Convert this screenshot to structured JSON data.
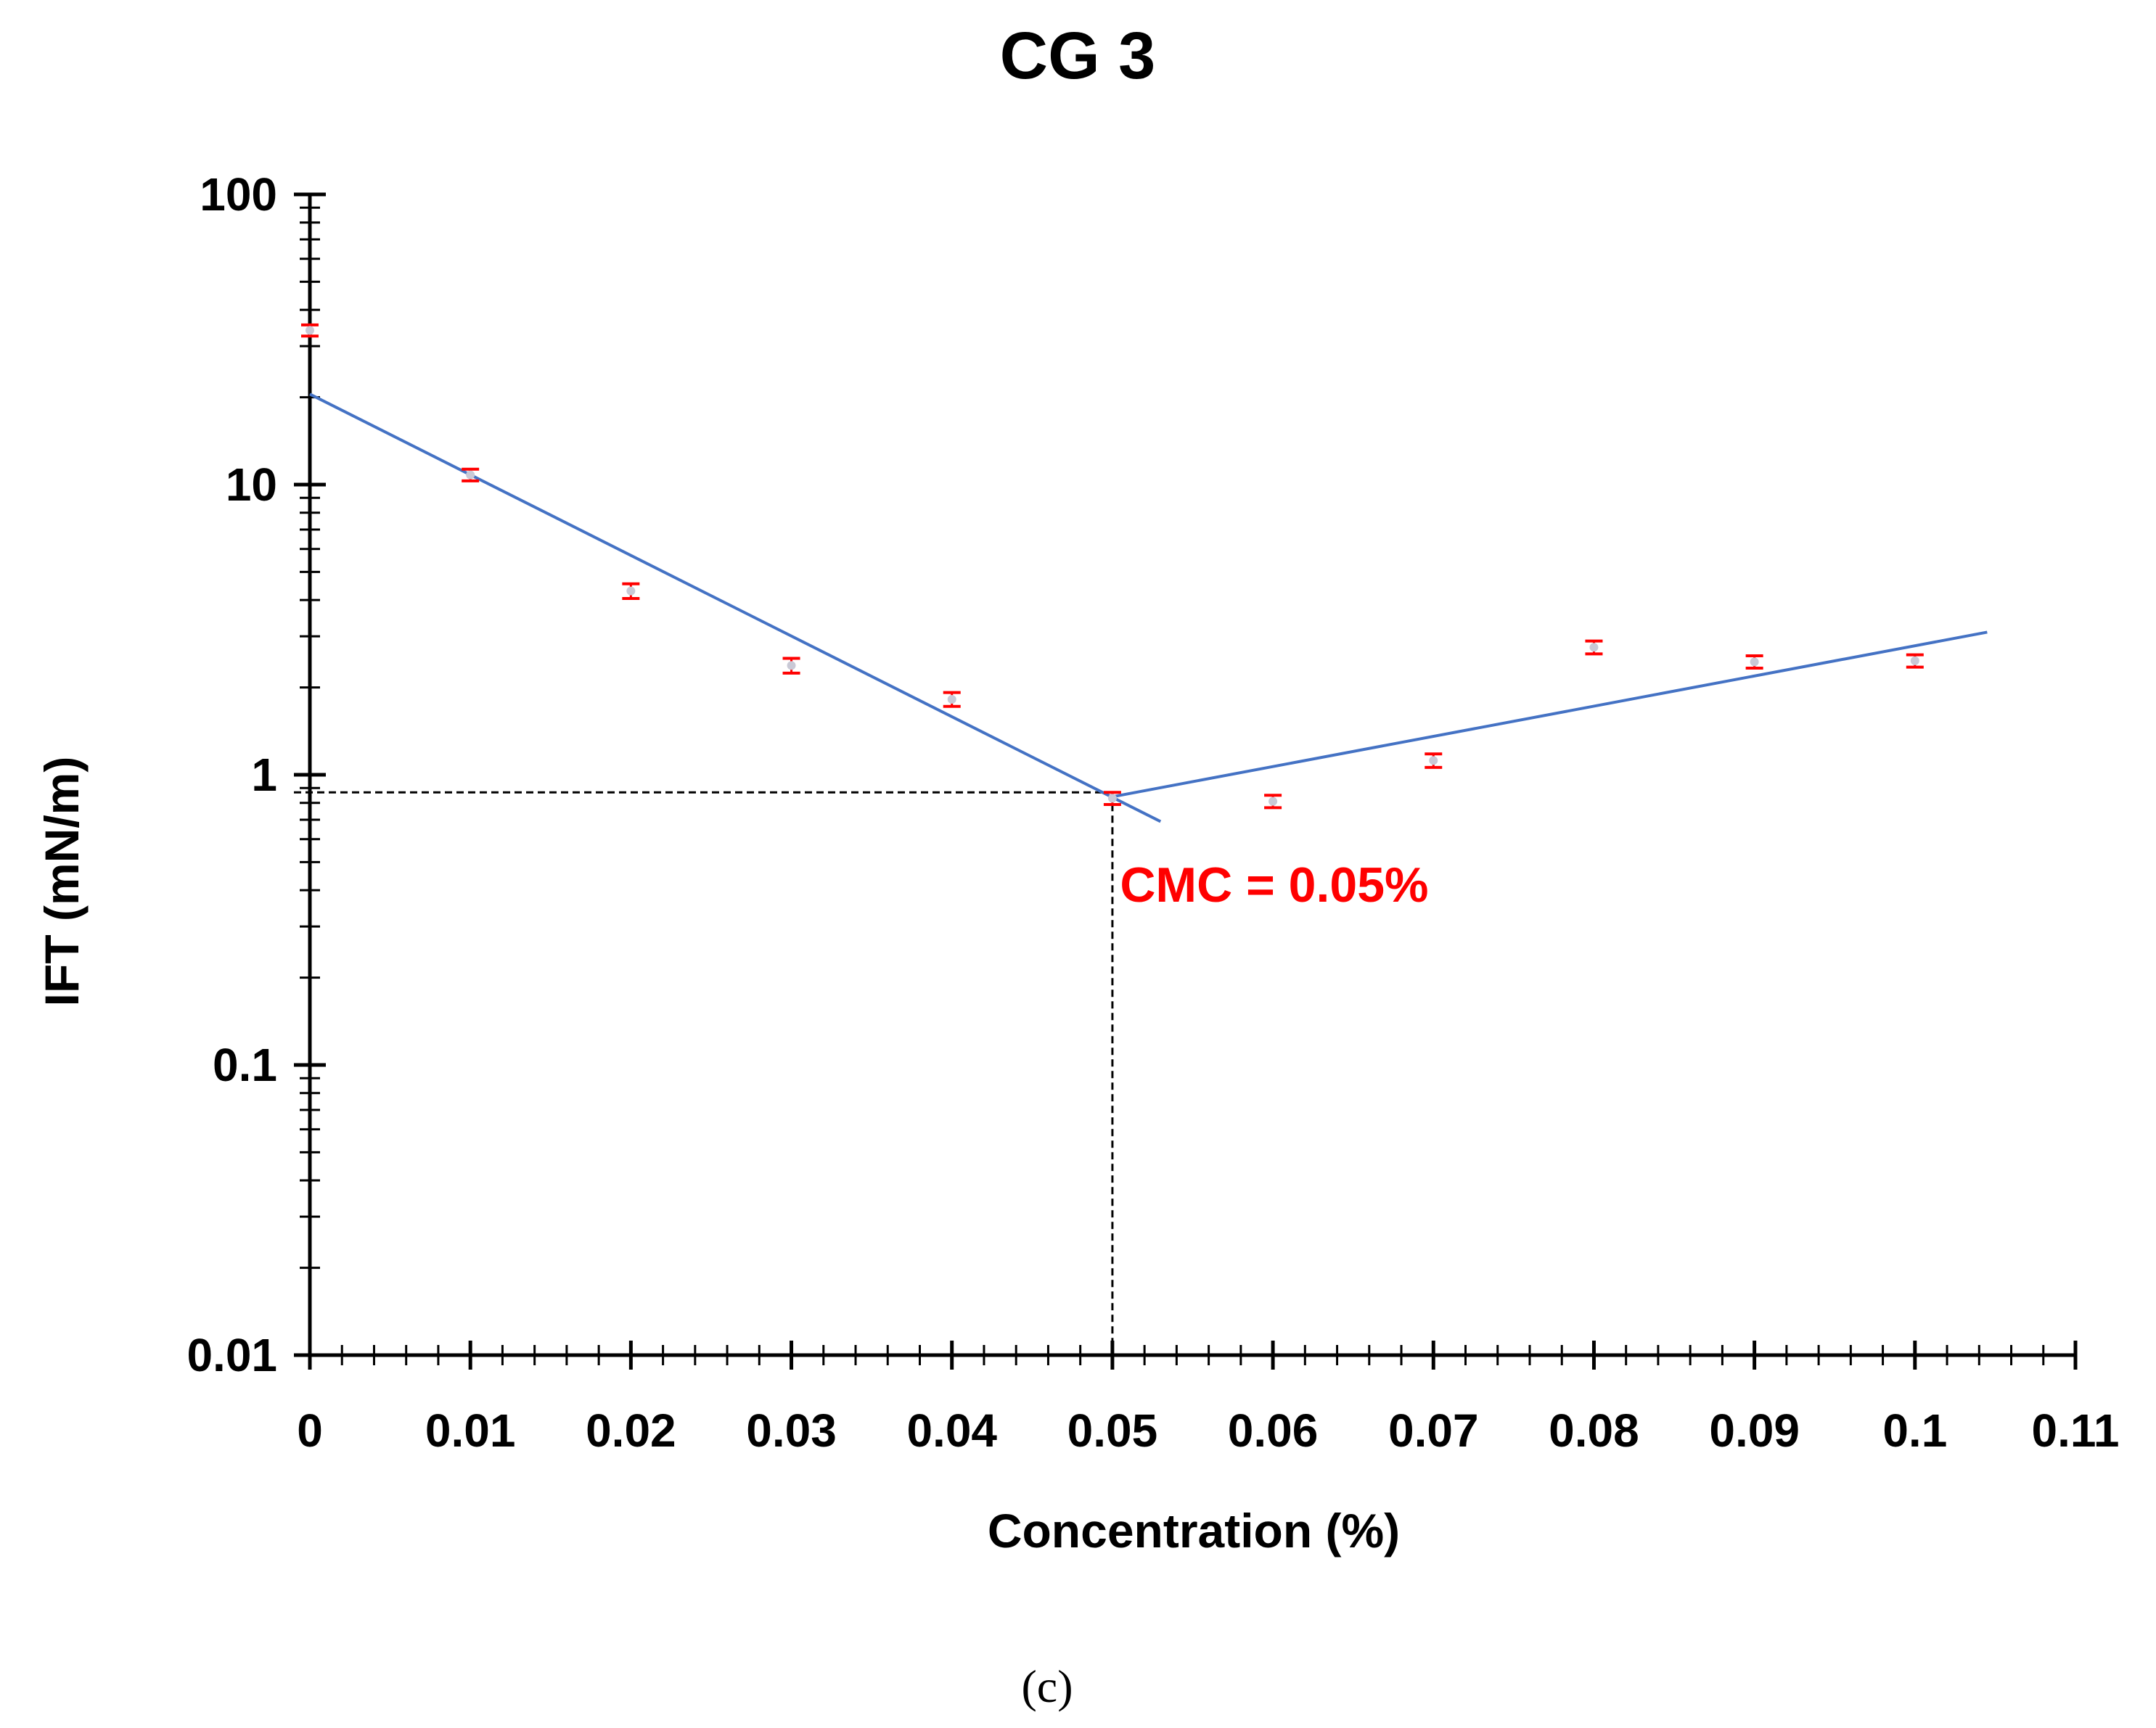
{
  "chart_data": {
    "type": "scatter",
    "title": "CG 3",
    "xlabel": "Concentration (%)",
    "ylabel": "IFT  (mN/m)",
    "xlim": [
      0,
      0.11
    ],
    "ylim": [
      0.01,
      100
    ],
    "yscale": "log",
    "x_ticks": [
      0,
      0.01,
      0.02,
      0.03,
      0.04,
      0.05,
      0.06,
      0.07,
      0.08,
      0.09,
      0.1,
      0.11
    ],
    "x_tick_labels": [
      "0",
      "0.01",
      "0.02",
      "0.03",
      "0.04",
      "0.05",
      "0.06",
      "0.07",
      "0.08",
      "0.09",
      "0.1",
      "0.11"
    ],
    "y_ticks": [
      0.01,
      0.1,
      1,
      10,
      100
    ],
    "y_tick_labels": [
      "0.01",
      "0.1",
      "1",
      "10",
      "100"
    ],
    "series": [
      {
        "name": "IFT",
        "points": [
          {
            "x": 0.0,
            "y": 34
          },
          {
            "x": 0.01,
            "y": 10.8
          },
          {
            "x": 0.02,
            "y": 4.3
          },
          {
            "x": 0.03,
            "y": 2.38
          },
          {
            "x": 0.04,
            "y": 1.82
          },
          {
            "x": 0.05,
            "y": 0.83
          },
          {
            "x": 0.06,
            "y": 0.81
          },
          {
            "x": 0.07,
            "y": 1.12
          },
          {
            "x": 0.08,
            "y": 2.75
          },
          {
            "x": 0.09,
            "y": 2.45
          },
          {
            "x": 0.1,
            "y": 2.47
          }
        ],
        "error": [
          1.5,
          0.5,
          0.25,
          0.14,
          0.1,
          0.04,
          0.04,
          0.06,
          0.14,
          0.12,
          0.12
        ],
        "marker_color": "#ff0000"
      }
    ],
    "trend_lines": [
      {
        "name": "fit-line-below-cmc",
        "from": {
          "x": 0.0,
          "y": 20.5
        },
        "to": {
          "x": 0.053,
          "y": 0.69
        },
        "color": "#4472c4"
      },
      {
        "name": "fit-line-above-cmc",
        "from": {
          "x": 0.05,
          "y": 0.84
        },
        "to": {
          "x": 0.1045,
          "y": 3.1
        },
        "color": "#4472c4"
      }
    ],
    "reference_lines": {
      "x": 0.05,
      "y": 0.87,
      "style": "dashed",
      "color": "#000000"
    },
    "annotations": [
      {
        "text": "CMC = 0.05%",
        "x": 0.0502,
        "y": 0.41,
        "color": "#ff0000"
      }
    ],
    "grid": false,
    "legend": "none"
  },
  "caption": "(c)"
}
